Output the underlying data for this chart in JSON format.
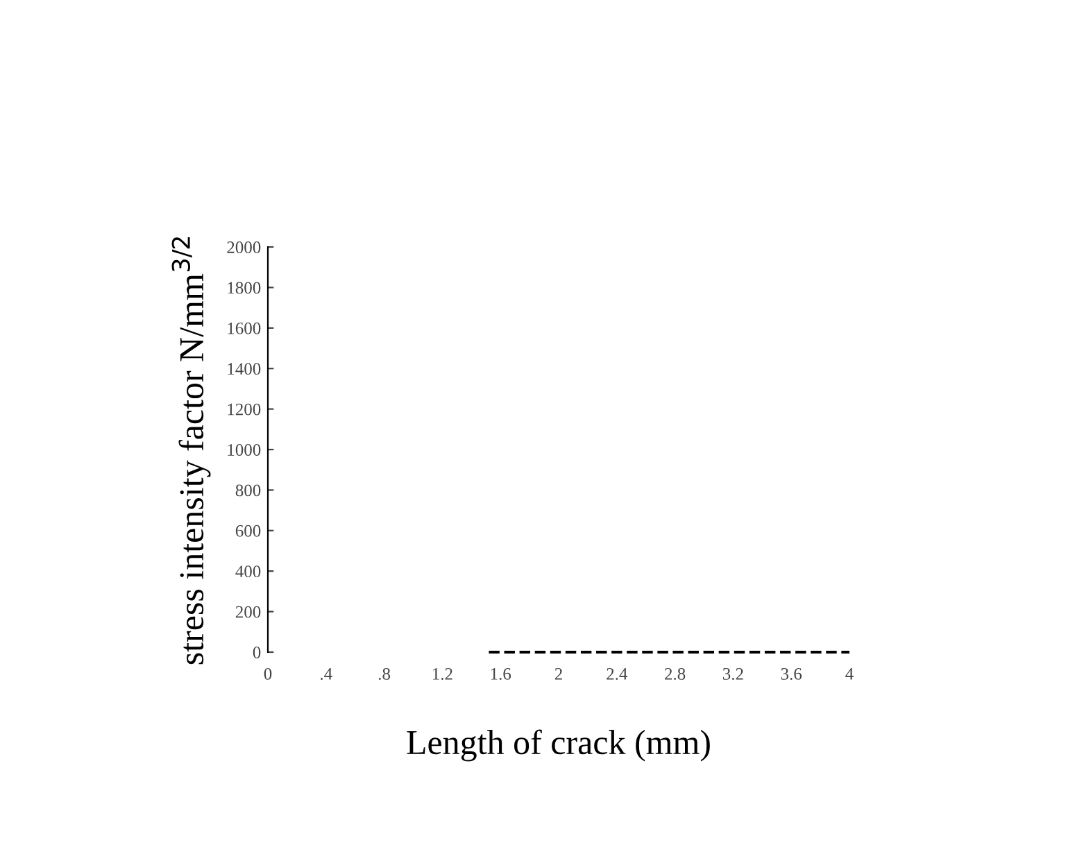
{
  "chart_data": {
    "type": "line",
    "xlabel": "Length of crack (mm)",
    "ylabel": "stress intensity factor N/mm$^{3/2}$",
    "x": [
      1.52,
      4.0
    ],
    "values": [
      0,
      0
    ],
    "color": "#000000",
    "line_style": "dashed",
    "marker": "none",
    "grid": false,
    "legend": false,
    "xlim": [
      0,
      4
    ],
    "xticks": [
      0,
      {
        "value": 0.4,
        "label": ".4"
      },
      {
        "value": 0.8,
        "label": ".8"
      },
      1.2,
      1.6,
      2,
      2.4,
      2.8,
      3.2,
      3.6,
      4
    ],
    "ylim": [
      0,
      2000
    ],
    "yticks": [
      0,
      200,
      400,
      600,
      800,
      1000,
      1200,
      1400,
      1600,
      1800,
      2000
    ]
  }
}
